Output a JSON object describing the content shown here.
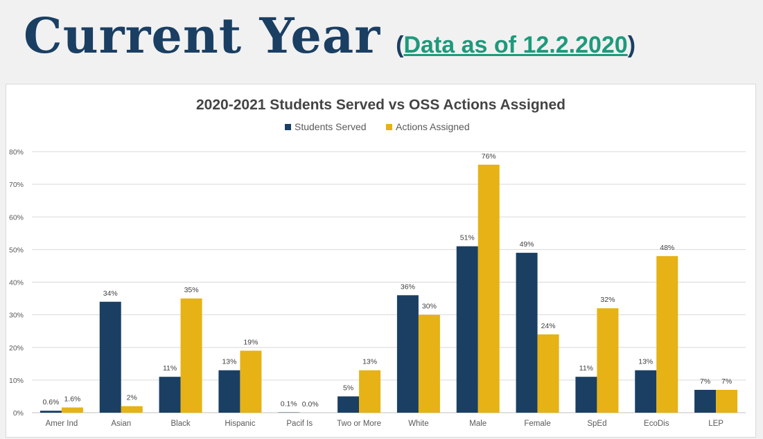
{
  "header": {
    "title": "Current Year",
    "subtitle_open": "(",
    "subtitle_link": "Data as of 12.2.2020",
    "subtitle_close": ")"
  },
  "colors": {
    "students_served": "#1a3f63",
    "actions_assigned": "#e6b215",
    "title": "#1a3f63",
    "link": "#1d9a7c"
  },
  "chart_data": {
    "type": "bar",
    "title": "2020-2021 Students Served vs OSS Actions Assigned",
    "xlabel": "",
    "ylabel": "",
    "ylim": [
      0,
      0.8
    ],
    "yticks": [
      "0%",
      "10%",
      "20%",
      "30%",
      "40%",
      "50%",
      "60%",
      "70%",
      "80%"
    ],
    "grid": true,
    "legend_position": "top-center",
    "categories": [
      "Amer Ind",
      "Asian",
      "Black",
      "Hispanic",
      "Pacif Is",
      "Two or More",
      "White",
      "Male",
      "Female",
      "SpEd",
      "EcoDis",
      "LEP"
    ],
    "series": [
      {
        "name": "Students Served",
        "color": "#1a3f63",
        "values": [
          0.006,
          0.34,
          0.11,
          0.13,
          0.001,
          0.05,
          0.36,
          0.51,
          0.49,
          0.11,
          0.13,
          0.07
        ],
        "labels": [
          "0.6%",
          "34%",
          "11%",
          "13%",
          "0.1%",
          "5%",
          "36%",
          "51%",
          "49%",
          "11%",
          "13%",
          "7%"
        ]
      },
      {
        "name": "Actions Assigned",
        "color": "#e6b215",
        "values": [
          0.016,
          0.02,
          0.35,
          0.19,
          0.0,
          0.13,
          0.3,
          0.76,
          0.24,
          0.32,
          0.48,
          0.07
        ],
        "labels": [
          "1.6%",
          "2%",
          "35%",
          "19%",
          "0.0%",
          "13%",
          "30%",
          "76%",
          "24%",
          "32%",
          "48%",
          "7%"
        ]
      }
    ]
  }
}
